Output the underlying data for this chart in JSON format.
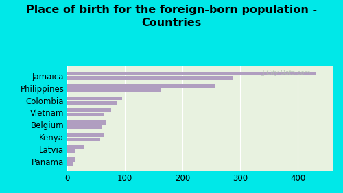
{
  "title": "Place of birth for the foreign-born population -\nCountries",
  "categories": [
    "Jamaica",
    "Philippines",
    "Colombia",
    "Vietnam",
    "Belgium",
    "Kenya",
    "Latvia",
    "Panama"
  ],
  "values1": [
    432,
    257,
    96,
    76,
    68,
    65,
    30,
    15
  ],
  "values2": [
    287,
    162,
    86,
    65,
    61,
    57,
    14,
    11
  ],
  "bar_color": "#b09ec0",
  "background_outer": "#00e8e8",
  "background_inner": "#e8f2e0",
  "xlim": [
    0,
    460
  ],
  "xticks": [
    0,
    100,
    200,
    300,
    400
  ],
  "title_fontsize": 11.5,
  "bar_height": 0.32,
  "label_fontsize": 8.5
}
